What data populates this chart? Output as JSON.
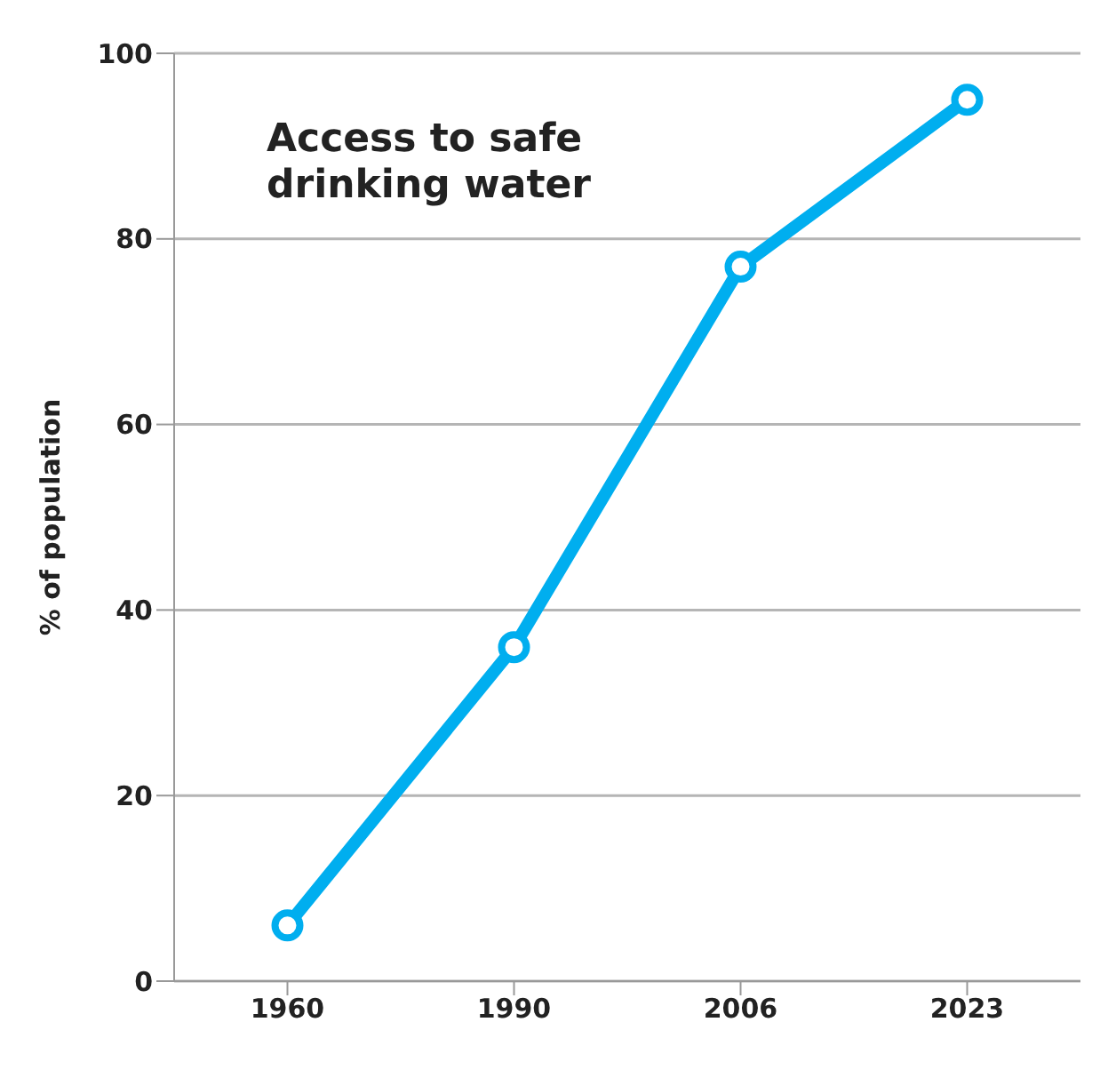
{
  "chart_data": {
    "type": "line",
    "title": "Access to safe drinking water",
    "ylabel": "% of population",
    "categories": [
      "1960",
      "1990",
      "2006",
      "2023"
    ],
    "series": [
      {
        "color": "#00aeef",
        "values": [
          6,
          36,
          77,
          95
        ]
      }
    ],
    "ylim": [
      0,
      100
    ],
    "yticks": [
      0,
      20,
      40,
      60,
      80,
      100
    ],
    "grid": "y",
    "marker": "circle",
    "line_style": "solid"
  }
}
